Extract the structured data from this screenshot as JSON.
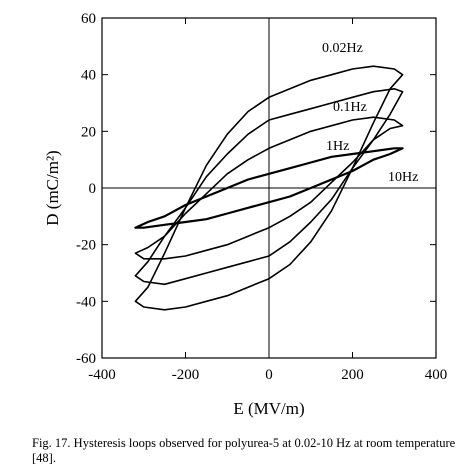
{
  "chart_data": {
    "type": "line",
    "xlabel": "E (MV/m)",
    "ylabel": "D (mC/m²)",
    "xlim": [
      -400,
      400
    ],
    "ylim": [
      -60,
      60
    ],
    "x_ticks": [
      -400,
      -200,
      0,
      200,
      400
    ],
    "y_ticks": [
      -60,
      -40,
      -20,
      0,
      20,
      40,
      60
    ],
    "grid": false,
    "zero_lines": true,
    "annotations": [
      "0.02Hz",
      "0.1Hz",
      "1Hz",
      "10Hz"
    ],
    "series": [
      {
        "name": "0.02Hz",
        "upper": [
          [
            320,
            40
          ],
          [
            300,
            42
          ],
          [
            250,
            43
          ],
          [
            200,
            42
          ],
          [
            150,
            40
          ],
          [
            100,
            38
          ],
          [
            50,
            35
          ],
          [
            0,
            32
          ],
          [
            -50,
            27
          ],
          [
            -100,
            19
          ],
          [
            -150,
            8
          ],
          [
            -200,
            -7
          ],
          [
            -250,
            -23
          ],
          [
            -290,
            -35
          ],
          [
            -320,
            -40
          ]
        ],
        "lower": [
          [
            -320,
            -40
          ],
          [
            -300,
            -42
          ],
          [
            -250,
            -43
          ],
          [
            -200,
            -42
          ],
          [
            -150,
            -40
          ],
          [
            -100,
            -38
          ],
          [
            -50,
            -35
          ],
          [
            0,
            -32
          ],
          [
            50,
            -27
          ],
          [
            100,
            -19
          ],
          [
            150,
            -8
          ],
          [
            200,
            7
          ],
          [
            250,
            23
          ],
          [
            290,
            35
          ],
          [
            320,
            40
          ]
        ]
      },
      {
        "name": "0.1Hz",
        "upper": [
          [
            320,
            34
          ],
          [
            300,
            35
          ],
          [
            250,
            34
          ],
          [
            200,
            32
          ],
          [
            150,
            30
          ],
          [
            100,
            28
          ],
          [
            50,
            26
          ],
          [
            0,
            24
          ],
          [
            -50,
            19
          ],
          [
            -100,
            12
          ],
          [
            -150,
            4
          ],
          [
            -200,
            -7
          ],
          [
            -250,
            -17
          ],
          [
            -290,
            -26
          ],
          [
            -320,
            -31
          ]
        ],
        "lower": [
          [
            -320,
            -31
          ],
          [
            -300,
            -33
          ],
          [
            -250,
            -34
          ],
          [
            -200,
            -32
          ],
          [
            -150,
            -30
          ],
          [
            -100,
            -28
          ],
          [
            -50,
            -26
          ],
          [
            0,
            -24
          ],
          [
            50,
            -19
          ],
          [
            100,
            -12
          ],
          [
            150,
            -4
          ],
          [
            200,
            7
          ],
          [
            250,
            17
          ],
          [
            290,
            26
          ],
          [
            320,
            34
          ]
        ]
      },
      {
        "name": "1Hz",
        "upper": [
          [
            320,
            22
          ],
          [
            300,
            24
          ],
          [
            250,
            25
          ],
          [
            200,
            24
          ],
          [
            150,
            22
          ],
          [
            100,
            20
          ],
          [
            50,
            17
          ],
          [
            0,
            14
          ],
          [
            -50,
            10
          ],
          [
            -100,
            5
          ],
          [
            -150,
            -2
          ],
          [
            -200,
            -9
          ],
          [
            -250,
            -17
          ],
          [
            -290,
            -21
          ],
          [
            -320,
            -23
          ]
        ],
        "lower": [
          [
            -320,
            -23
          ],
          [
            -300,
            -25
          ],
          [
            -250,
            -25
          ],
          [
            -200,
            -24
          ],
          [
            -150,
            -22
          ],
          [
            -100,
            -20
          ],
          [
            -50,
            -17
          ],
          [
            0,
            -14
          ],
          [
            50,
            -10
          ],
          [
            100,
            -5
          ],
          [
            150,
            2
          ],
          [
            200,
            9
          ],
          [
            250,
            17
          ],
          [
            290,
            21
          ],
          [
            320,
            22
          ]
        ]
      },
      {
        "name": "10Hz",
        "upper": [
          [
            320,
            14
          ],
          [
            300,
            14
          ],
          [
            250,
            13
          ],
          [
            200,
            12
          ],
          [
            150,
            11
          ],
          [
            100,
            9
          ],
          [
            50,
            7
          ],
          [
            0,
            5
          ],
          [
            -50,
            3
          ],
          [
            -100,
            0
          ],
          [
            -150,
            -3
          ],
          [
            -200,
            -6
          ],
          [
            -250,
            -10
          ],
          [
            -290,
            -12
          ],
          [
            -320,
            -14
          ]
        ],
        "lower": [
          [
            -320,
            -14
          ],
          [
            -300,
            -14
          ],
          [
            -250,
            -13
          ],
          [
            -200,
            -12
          ],
          [
            -150,
            -11
          ],
          [
            -100,
            -9
          ],
          [
            -50,
            -7
          ],
          [
            0,
            -5
          ],
          [
            50,
            -3
          ],
          [
            100,
            0
          ],
          [
            150,
            3
          ],
          [
            200,
            6
          ],
          [
            250,
            10
          ],
          [
            290,
            12
          ],
          [
            320,
            14
          ]
        ]
      }
    ]
  },
  "caption": "Fig. 17. Hysteresis loops observed for polyurea-5 at 0.02-10 Hz at room temperature [48]."
}
